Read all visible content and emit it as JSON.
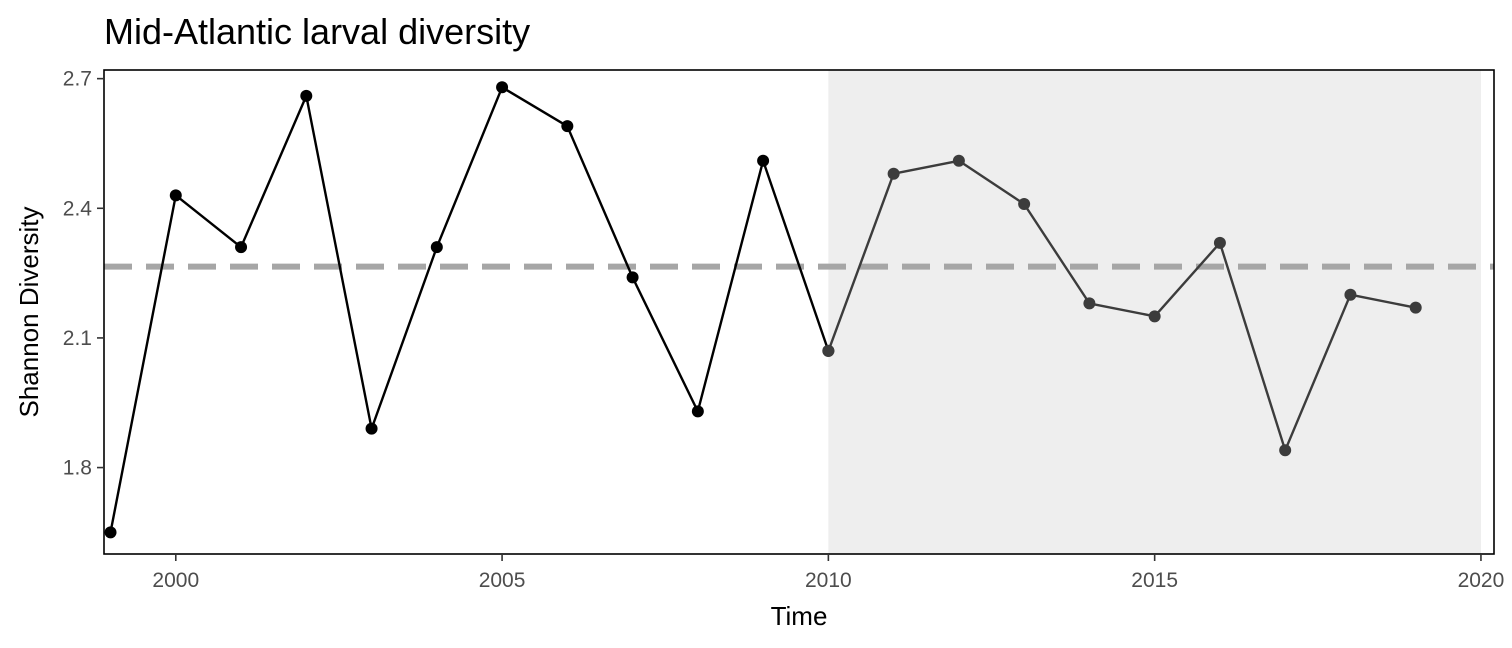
{
  "chart_data": {
    "type": "line",
    "title": "Mid-Atlantic larval diversity",
    "xlabel": "Time",
    "ylabel": "Shannon Diversity",
    "xlim": [
      1998.9,
      2020.2
    ],
    "ylim": [
      1.6,
      2.72
    ],
    "xticks": [
      2000,
      2005,
      2010,
      2015,
      2020
    ],
    "yticks": [
      1.8,
      2.1,
      2.4,
      2.7
    ],
    "xtick_labels": [
      "2000",
      "2005",
      "2010",
      "2015",
      "2020"
    ],
    "ytick_labels": [
      "1.8",
      "2.1",
      "2.4",
      "2.7"
    ],
    "grid": false,
    "highlight_region": {
      "x": [
        2010,
        2020
      ],
      "color": "#eeeeee"
    },
    "reference_line": {
      "y": 2.265,
      "style": "dashed",
      "color": "#a6a6a6"
    },
    "series": [
      {
        "x": [
          1999,
          2000,
          2001,
          2002,
          2003,
          2004,
          2005,
          2006,
          2007,
          2008,
          2009,
          2010
        ],
        "y": [
          1.65,
          2.43,
          2.31,
          2.66,
          1.89,
          2.31,
          2.68,
          2.59,
          2.24,
          1.93,
          2.51,
          2.07
        ],
        "color": "#000000"
      },
      {
        "x": [
          2010,
          2011,
          2012,
          2013,
          2014,
          2015,
          2016,
          2017,
          2018,
          2019
        ],
        "y": [
          2.07,
          2.48,
          2.51,
          2.41,
          2.18,
          2.15,
          2.32,
          1.84,
          2.2,
          2.17
        ],
        "color": "#3c3c3c"
      }
    ]
  }
}
